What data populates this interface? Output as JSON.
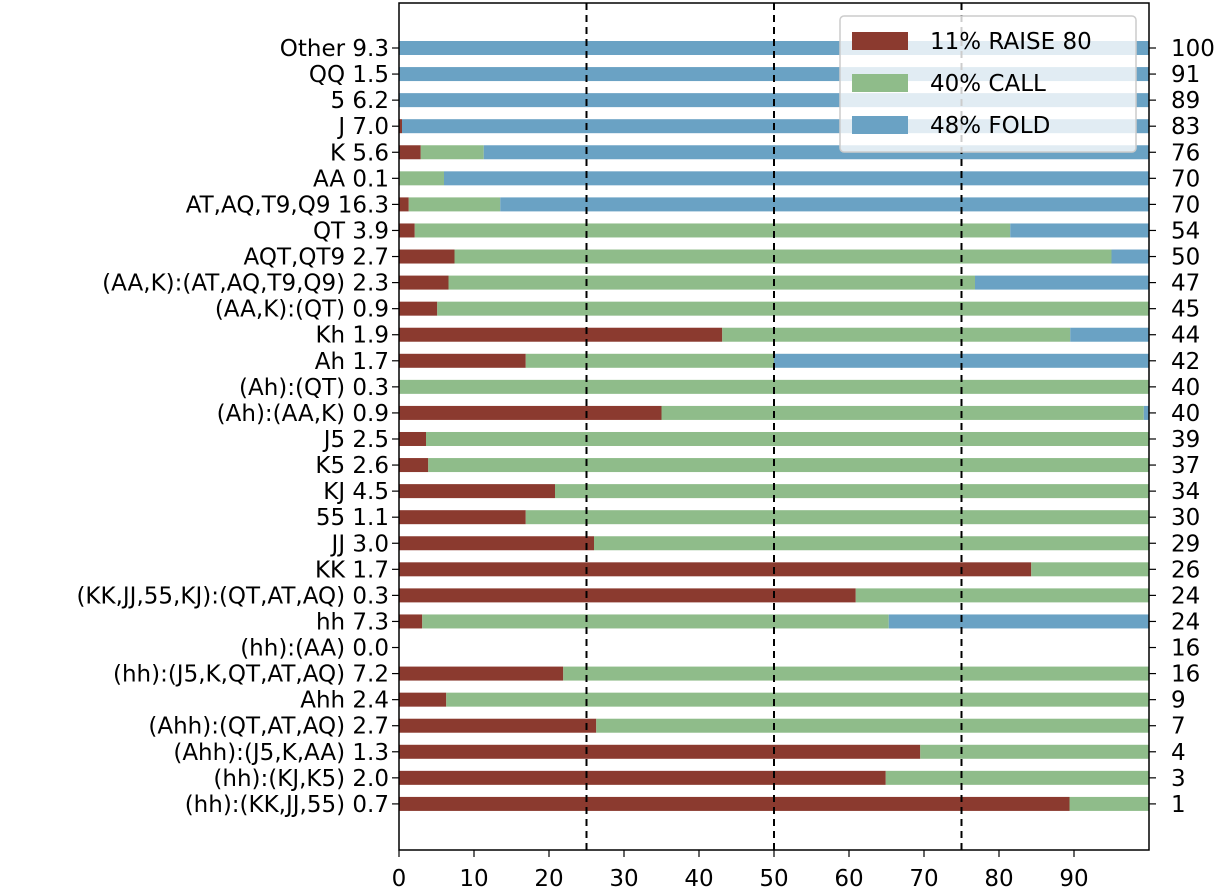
{
  "chart_data": {
    "type": "bar",
    "orientation": "horizontal",
    "stacked": true,
    "xlim": [
      0,
      100
    ],
    "x_ticks": [
      0,
      10,
      20,
      30,
      40,
      50,
      60,
      70,
      80,
      90
    ],
    "vlines": [
      25,
      50,
      75
    ],
    "legend_position": "top-right",
    "categories": [
      "Other 9.3",
      "QQ 1.5",
      "5 6.2",
      "J 7.0",
      "K 5.6",
      "AA 0.1",
      "AT,AQ,T9,Q9 16.3",
      "QT 3.9",
      "AQT,QT9 2.7",
      "(AA,K):(AT,AQ,T9,Q9) 2.3",
      "(AA,K):(QT) 0.9",
      "Kh 1.9",
      "Ah 1.7",
      "(Ah):(QT) 0.3",
      "(Ah):(AA,K) 0.9",
      "J5 2.5",
      "K5 2.6",
      "KJ 4.5",
      "55 1.1",
      "JJ 3.0",
      "KK 1.7",
      "(KK,JJ,55,KJ):(QT,AT,AQ) 0.3",
      "hh 7.3",
      "(hh):(AA) 0.0",
      "(hh):(J5,K,QT,AT,AQ) 7.2",
      "Ahh 2.4",
      "(Ahh):(QT,AT,AQ) 2.7",
      "(Ahh):(J5,K,AA) 1.3",
      "(hh):(KJ,K5) 2.0",
      "(hh):(KK,JJ,55) 0.7"
    ],
    "right_labels": [
      "100",
      "91",
      "89",
      "83",
      "76",
      "70",
      "70",
      "54",
      "50",
      "47",
      "45",
      "44",
      "42",
      "40",
      "40",
      "39",
      "37",
      "34",
      "30",
      "29",
      "26",
      "24",
      "24",
      "16",
      "16",
      "9",
      "7",
      "4",
      "3",
      "1"
    ],
    "series": [
      {
        "name": "11% RAISE 80",
        "color": "#8b3a2f",
        "values": [
          0,
          0,
          0,
          0.4,
          2.9,
          0.1,
          1.3,
          2.1,
          7.4,
          6.6,
          5.1,
          43.1,
          16.9,
          0.1,
          35.0,
          3.6,
          3.9,
          20.8,
          16.9,
          26.0,
          84.3,
          60.9,
          3.1,
          0,
          21.9,
          6.3,
          26.3,
          69.5,
          64.9,
          89.4
        ]
      },
      {
        "name": "40% CALL",
        "color": "#8fbc8a",
        "values": [
          0,
          0,
          0,
          0,
          8.4,
          5.9,
          12.2,
          79.4,
          87.6,
          70.2,
          94.9,
          46.4,
          33.1,
          99.9,
          64.3,
          96.4,
          96.1,
          79.2,
          83.1,
          74.0,
          15.7,
          39.1,
          62.2,
          0,
          78.1,
          93.7,
          73.7,
          30.5,
          35.1,
          10.6
        ]
      },
      {
        "name": "48% FOLD",
        "color": "#6aa2c4",
        "values": [
          100,
          100,
          100,
          99.6,
          88.7,
          94.0,
          86.5,
          18.5,
          5.0,
          23.2,
          0,
          10.5,
          50.0,
          0,
          0.7,
          0,
          0,
          0,
          0,
          0,
          0,
          0,
          34.7,
          0,
          0,
          0,
          0,
          0,
          0,
          0
        ]
      }
    ]
  }
}
